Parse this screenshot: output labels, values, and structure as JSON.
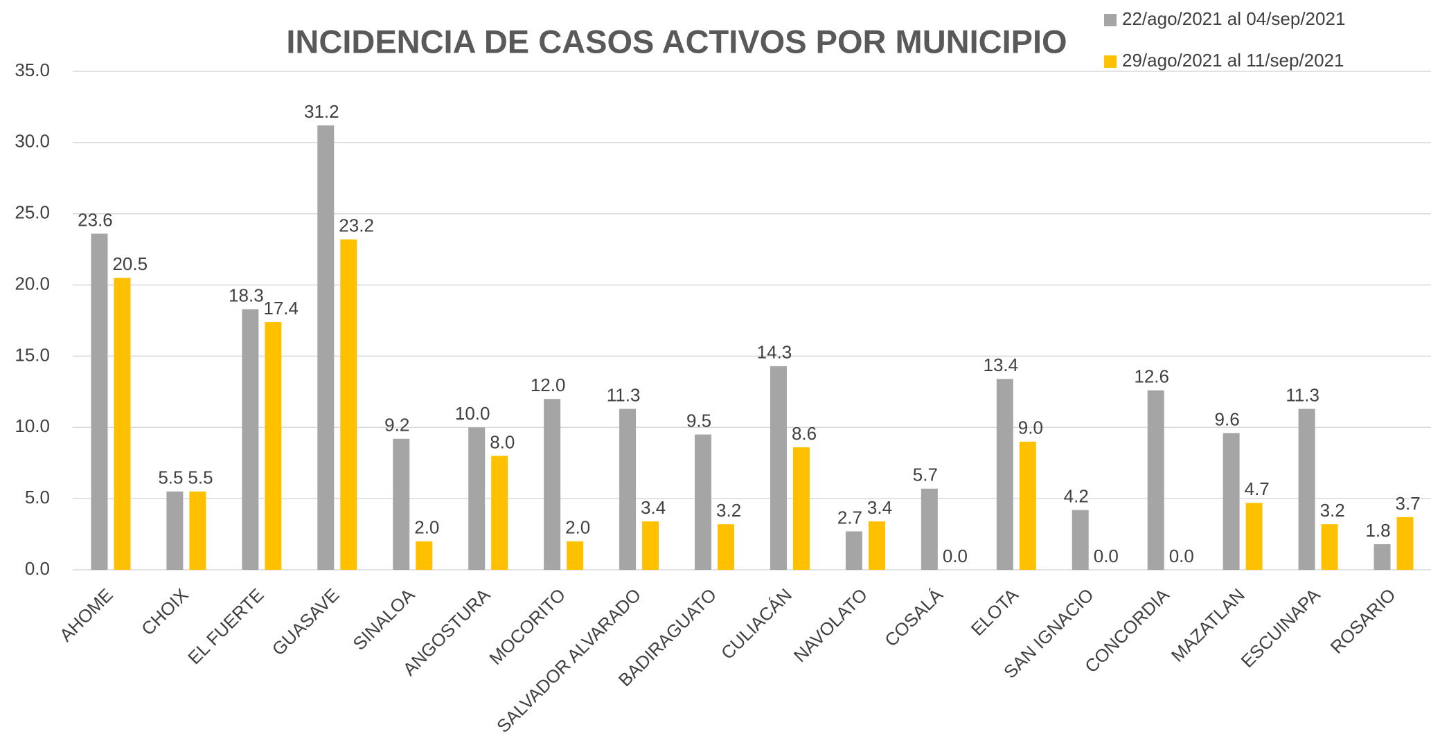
{
  "chart_data": {
    "type": "bar",
    "title": "INCIDENCIA DE CASOS ACTIVOS POR MUNICIPIO",
    "categories": [
      "AHOME",
      "CHOIX",
      "EL FUERTE",
      "GUASAVE",
      "SINALOA",
      "ANGOSTURA",
      "MOCORITO",
      "SALVADOR ALVARADO",
      "BADIRAGUATO",
      "CULIACÁN",
      "NAVOLATO",
      "COSALÁ",
      "ELOTA",
      "SAN IGNACIO",
      "CONCORDIA",
      "MAZATLAN",
      "ESCUINAPA",
      "ROSARIO"
    ],
    "series": [
      {
        "name": "22/ago/2021 al  04/sep/2021",
        "color": "#a5a5a5",
        "values": [
          23.6,
          5.5,
          18.3,
          31.2,
          9.2,
          10,
          12,
          11.3,
          9.5,
          14.3,
          2.7,
          5.7,
          13.4,
          4.2,
          12.6,
          9.6,
          11.3,
          1.8
        ],
        "value_labels": [
          "23.6",
          "5.5",
          "18.3",
          "31.2",
          "9.2",
          "10.0",
          "12.0",
          "11.3",
          "9.5",
          "14.3",
          "2.7",
          "5.7",
          "13.4",
          "4.2",
          "12.6",
          "9.6",
          "11.3",
          "1.8"
        ]
      },
      {
        "name": "29/ago/2021 al  11/sep/2021",
        "color": "#ffc000",
        "values": [
          20.5,
          5.5,
          17.4,
          23.2,
          2,
          8,
          2,
          3.4,
          3.2,
          8.6,
          3.4,
          0,
          9,
          0,
          0,
          4.7,
          3.2,
          3.7
        ],
        "value_labels": [
          "20.5",
          "5.5",
          "17.4",
          "23.2",
          "2.0",
          "8.0",
          "2.0",
          "3.4",
          "3.2",
          "8.6",
          "3.4",
          "0.0",
          "9.0",
          "0.0",
          "0.0",
          "4.7",
          "3.2",
          "3.7"
        ]
      }
    ],
    "ylim": [
      0,
      35
    ],
    "yticks": [
      {
        "value": 0,
        "label": "0.0"
      },
      {
        "value": 5,
        "label": "5.0"
      },
      {
        "value": 10,
        "label": "10.0"
      },
      {
        "value": 15,
        "label": "15.0"
      },
      {
        "value": 20,
        "label": "20.0"
      },
      {
        "value": 25,
        "label": "25.0"
      },
      {
        "value": 30,
        "label": "30.0"
      },
      {
        "value": 35,
        "label": "35.0"
      }
    ],
    "grid": true,
    "legend": "top-right"
  }
}
